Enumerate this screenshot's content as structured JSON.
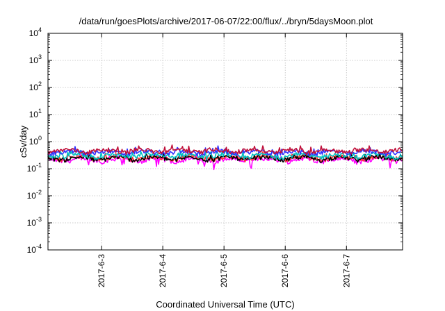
{
  "chart_data": {
    "type": "line",
    "title": "/data/run/goesPlots/archive/2017-06-07/22:00/flux/../bryn/5daysMoon.plot",
    "xlabel": "Coordinated Universal Time (UTC)",
    "ylabel": "cSv/day",
    "yscale": "log",
    "ylim": [
      0.0001,
      10000
    ],
    "y_ticks": [
      {
        "exp": "-4",
        "value": 0.0001
      },
      {
        "exp": "-3",
        "value": 0.001
      },
      {
        "exp": "-2",
        "value": 0.01
      },
      {
        "exp": "-1",
        "value": 0.1
      },
      {
        "exp": "0",
        "value": 1
      },
      {
        "exp": "1",
        "value": 10
      },
      {
        "exp": "2",
        "value": 100
      },
      {
        "exp": "3",
        "value": 1000
      },
      {
        "exp": "4",
        "value": 10000
      }
    ],
    "y_tick_base": "10",
    "xlim": [
      "2017-06-02T03:00",
      "2017-06-07T22:00"
    ],
    "x_ticks": [
      "2017-6-3",
      "2017-6-4",
      "2017-6-5",
      "2017-6-6",
      "2017-6-7"
    ],
    "x_tick_dates": [
      "2017-06-03T00:00",
      "2017-06-04T00:00",
      "2017-06-05T00:00",
      "2017-06-06T00:00",
      "2017-06-07T00:00"
    ],
    "grid": true,
    "legend": "none",
    "series": [
      {
        "color": "#ff00ff",
        "base": 0.21,
        "dips": true
      },
      {
        "color": "#ff3030",
        "base": 0.25,
        "dips": false
      },
      {
        "color": "#000000",
        "base": 0.24,
        "dips": false
      },
      {
        "color": "#00bfbf",
        "base": 0.3,
        "dips": false
      },
      {
        "color": "#3030ff",
        "base": 0.4,
        "dips": false
      },
      {
        "color": "#c0103a",
        "base": 0.46,
        "dips": false
      }
    ]
  }
}
